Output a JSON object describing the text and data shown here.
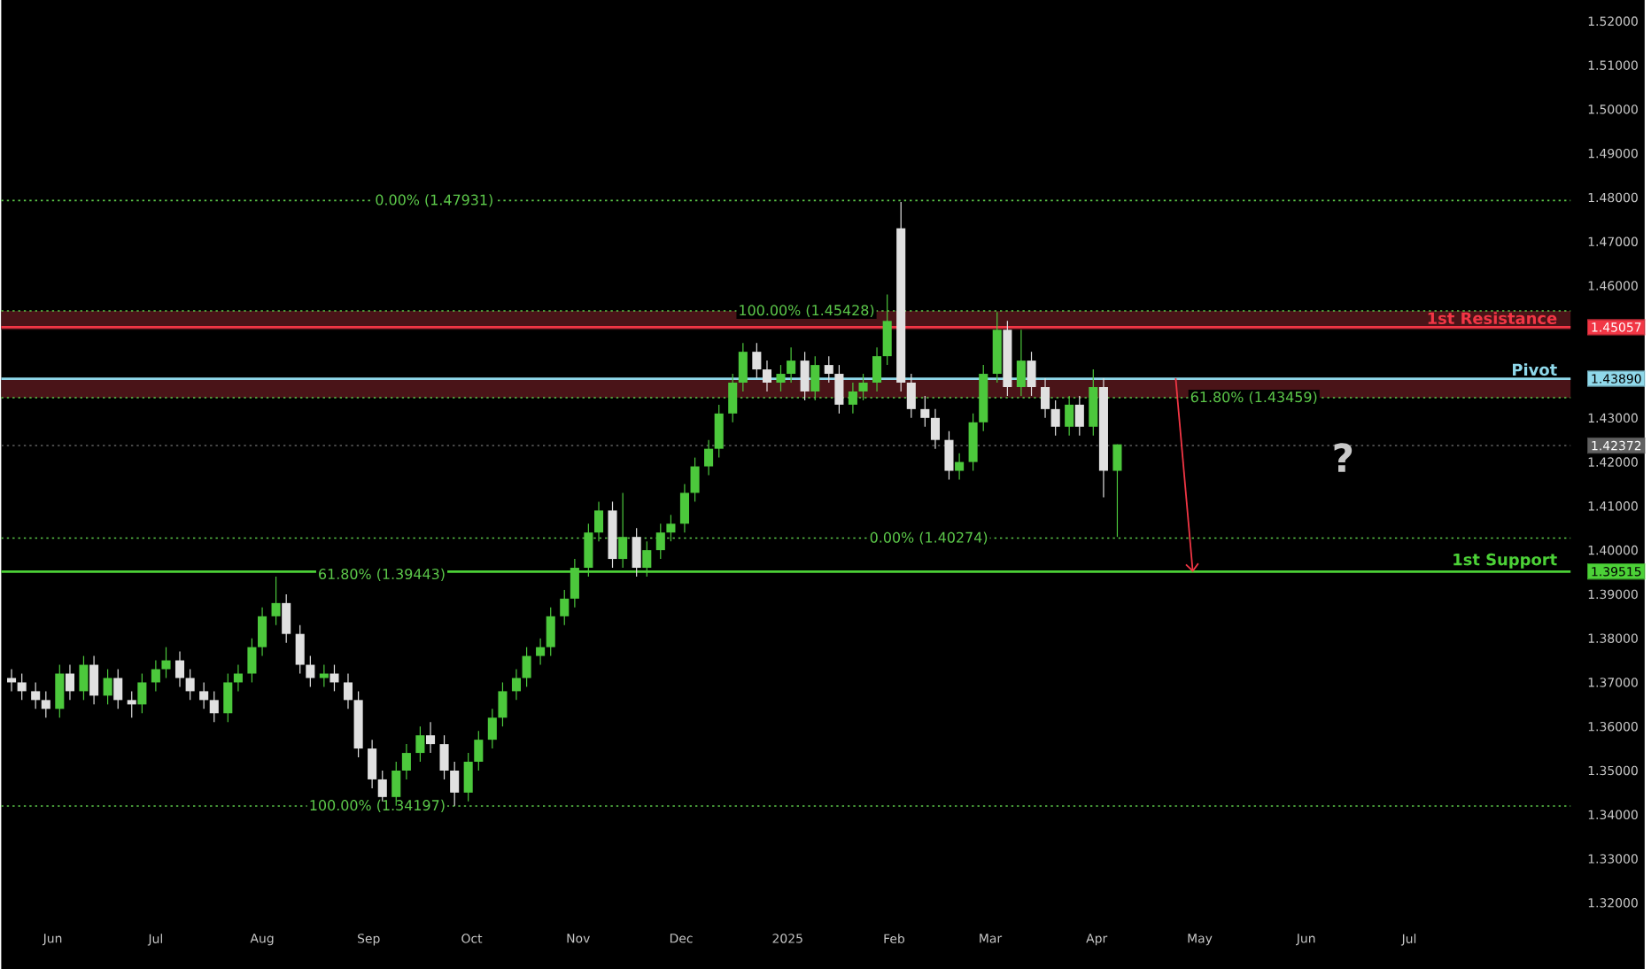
{
  "chart_data": {
    "type": "candlestick",
    "x": [
      "2024-05-20",
      "2024-05-23",
      "2024-05-27",
      "2024-05-30",
      "2024-06-03",
      "2024-06-06",
      "2024-06-10",
      "2024-06-13",
      "2024-06-17",
      "2024-06-20",
      "2024-06-24",
      "2024-06-27",
      "2024-07-01",
      "2024-07-04",
      "2024-07-08",
      "2024-07-11",
      "2024-07-15",
      "2024-07-18",
      "2024-07-22",
      "2024-07-25",
      "2024-07-29",
      "2024-08-01",
      "2024-08-05",
      "2024-08-08",
      "2024-08-12",
      "2024-08-15",
      "2024-08-19",
      "2024-08-22",
      "2024-08-26",
      "2024-08-29",
      "2024-09-02",
      "2024-09-05",
      "2024-09-09",
      "2024-09-12",
      "2024-09-16",
      "2024-09-19",
      "2024-09-23",
      "2024-09-26",
      "2024-09-30",
      "2024-10-03",
      "2024-10-07",
      "2024-10-10",
      "2024-10-14",
      "2024-10-17",
      "2024-10-21",
      "2024-10-24",
      "2024-10-28",
      "2024-10-31",
      "2024-11-04",
      "2024-11-07",
      "2024-11-11",
      "2024-11-14",
      "2024-11-18",
      "2024-11-21",
      "2024-11-25",
      "2024-11-28",
      "2024-12-02",
      "2024-12-05",
      "2024-12-09",
      "2024-12-12",
      "2024-12-16",
      "2024-12-19",
      "2024-12-23",
      "2024-12-26",
      "2024-12-30",
      "2025-01-02",
      "2025-01-06",
      "2025-01-09",
      "2025-01-13",
      "2025-01-16",
      "2025-01-20",
      "2025-01-23",
      "2025-01-27",
      "2025-01-30",
      "2025-02-03",
      "2025-02-06",
      "2025-02-10",
      "2025-02-13",
      "2025-02-17",
      "2025-02-20",
      "2025-02-24",
      "2025-02-27",
      "2025-03-03",
      "2025-03-06",
      "2025-03-10",
      "2025-03-13",
      "2025-03-17",
      "2025-03-20",
      "2025-03-24",
      "2025-03-27",
      "2025-03-31",
      "2025-04-03",
      "2025-04-07"
    ],
    "ohlc": [
      [
        1.371,
        1.373,
        1.368,
        1.37
      ],
      [
        1.37,
        1.372,
        1.366,
        1.368
      ],
      [
        1.368,
        1.37,
        1.364,
        1.366
      ],
      [
        1.366,
        1.368,
        1.362,
        1.364
      ],
      [
        1.364,
        1.374,
        1.362,
        1.372
      ],
      [
        1.372,
        1.374,
        1.366,
        1.368
      ],
      [
        1.368,
        1.376,
        1.366,
        1.374
      ],
      [
        1.374,
        1.376,
        1.365,
        1.367
      ],
      [
        1.367,
        1.373,
        1.365,
        1.371
      ],
      [
        1.371,
        1.373,
        1.364,
        1.366
      ],
      [
        1.366,
        1.368,
        1.362,
        1.365
      ],
      [
        1.365,
        1.372,
        1.363,
        1.37
      ],
      [
        1.37,
        1.375,
        1.368,
        1.373
      ],
      [
        1.373,
        1.378,
        1.371,
        1.375
      ],
      [
        1.375,
        1.377,
        1.369,
        1.371
      ],
      [
        1.371,
        1.373,
        1.366,
        1.368
      ],
      [
        1.368,
        1.37,
        1.364,
        1.366
      ],
      [
        1.366,
        1.368,
        1.361,
        1.363
      ],
      [
        1.363,
        1.372,
        1.361,
        1.37
      ],
      [
        1.37,
        1.374,
        1.368,
        1.372
      ],
      [
        1.372,
        1.38,
        1.37,
        1.378
      ],
      [
        1.378,
        1.387,
        1.376,
        1.385
      ],
      [
        1.385,
        1.394,
        1.383,
        1.388
      ],
      [
        1.388,
        1.39,
        1.379,
        1.381
      ],
      [
        1.381,
        1.383,
        1.372,
        1.374
      ],
      [
        1.374,
        1.376,
        1.369,
        1.371
      ],
      [
        1.371,
        1.374,
        1.369,
        1.372
      ],
      [
        1.372,
        1.374,
        1.368,
        1.37
      ],
      [
        1.37,
        1.372,
        1.364,
        1.366
      ],
      [
        1.366,
        1.368,
        1.353,
        1.355
      ],
      [
        1.355,
        1.357,
        1.346,
        1.348
      ],
      [
        1.348,
        1.35,
        1.343,
        1.344
      ],
      [
        1.344,
        1.352,
        1.342,
        1.35
      ],
      [
        1.35,
        1.356,
        1.348,
        1.354
      ],
      [
        1.354,
        1.36,
        1.352,
        1.358
      ],
      [
        1.358,
        1.361,
        1.354,
        1.356
      ],
      [
        1.356,
        1.358,
        1.348,
        1.35
      ],
      [
        1.35,
        1.352,
        1.342,
        1.345
      ],
      [
        1.345,
        1.354,
        1.343,
        1.352
      ],
      [
        1.352,
        1.359,
        1.35,
        1.357
      ],
      [
        1.357,
        1.364,
        1.355,
        1.362
      ],
      [
        1.362,
        1.37,
        1.36,
        1.368
      ],
      [
        1.368,
        1.373,
        1.366,
        1.371
      ],
      [
        1.371,
        1.378,
        1.369,
        1.376
      ],
      [
        1.376,
        1.38,
        1.374,
        1.378
      ],
      [
        1.378,
        1.387,
        1.376,
        1.385
      ],
      [
        1.385,
        1.391,
        1.383,
        1.389
      ],
      [
        1.389,
        1.398,
        1.387,
        1.396
      ],
      [
        1.396,
        1.406,
        1.394,
        1.404
      ],
      [
        1.404,
        1.411,
        1.402,
        1.409
      ],
      [
        1.409,
        1.411,
        1.396,
        1.398
      ],
      [
        1.398,
        1.413,
        1.396,
        1.403
      ],
      [
        1.403,
        1.405,
        1.394,
        1.396
      ],
      [
        1.396,
        1.402,
        1.394,
        1.4
      ],
      [
        1.4,
        1.406,
        1.398,
        1.404
      ],
      [
        1.404,
        1.408,
        1.402,
        1.406
      ],
      [
        1.406,
        1.415,
        1.404,
        1.413
      ],
      [
        1.413,
        1.421,
        1.411,
        1.419
      ],
      [
        1.419,
        1.425,
        1.417,
        1.423
      ],
      [
        1.423,
        1.433,
        1.421,
        1.431
      ],
      [
        1.431,
        1.44,
        1.429,
        1.438
      ],
      [
        1.438,
        1.447,
        1.436,
        1.445
      ],
      [
        1.445,
        1.447,
        1.439,
        1.441
      ],
      [
        1.441,
        1.443,
        1.436,
        1.438
      ],
      [
        1.438,
        1.442,
        1.436,
        1.44
      ],
      [
        1.44,
        1.446,
        1.438,
        1.443
      ],
      [
        1.443,
        1.445,
        1.434,
        1.436
      ],
      [
        1.436,
        1.444,
        1.434,
        1.442
      ],
      [
        1.442,
        1.444,
        1.438,
        1.44
      ],
      [
        1.44,
        1.442,
        1.431,
        1.433
      ],
      [
        1.433,
        1.438,
        1.431,
        1.436
      ],
      [
        1.436,
        1.44,
        1.434,
        1.438
      ],
      [
        1.438,
        1.446,
        1.436,
        1.444
      ],
      [
        1.444,
        1.458,
        1.442,
        1.452
      ],
      [
        1.473,
        1.479,
        1.436,
        1.438
      ],
      [
        1.438,
        1.44,
        1.43,
        1.432
      ],
      [
        1.432,
        1.435,
        1.428,
        1.43
      ],
      [
        1.43,
        1.432,
        1.423,
        1.425
      ],
      [
        1.425,
        1.427,
        1.416,
        1.418
      ],
      [
        1.418,
        1.422,
        1.416,
        1.42
      ],
      [
        1.42,
        1.431,
        1.418,
        1.429
      ],
      [
        1.429,
        1.442,
        1.427,
        1.44
      ],
      [
        1.44,
        1.454,
        1.438,
        1.45
      ],
      [
        1.45,
        1.452,
        1.435,
        1.437
      ],
      [
        1.437,
        1.45,
        1.435,
        1.443
      ],
      [
        1.443,
        1.445,
        1.435,
        1.437
      ],
      [
        1.437,
        1.439,
        1.43,
        1.432
      ],
      [
        1.432,
        1.434,
        1.426,
        1.428
      ],
      [
        1.428,
        1.435,
        1.426,
        1.433
      ],
      [
        1.433,
        1.435,
        1.426,
        1.428
      ],
      [
        1.428,
        1.441,
        1.426,
        1.437
      ],
      [
        1.437,
        1.439,
        1.412,
        1.418
      ],
      [
        1.418,
        1.424,
        1.403,
        1.424
      ]
    ],
    "colors": [
      "#e0e0e0",
      "#e0e0e0",
      "#e0e0e0",
      "#e0e0e0",
      "#4cc83c",
      "#e0e0e0",
      "#4cc83c",
      "#e0e0e0",
      "#4cc83c",
      "#e0e0e0",
      "#e0e0e0",
      "#4cc83c",
      "#4cc83c",
      "#4cc83c",
      "#e0e0e0",
      "#e0e0e0",
      "#e0e0e0",
      "#e0e0e0",
      "#4cc83c",
      "#4cc83c",
      "#4cc83c",
      "#4cc83c",
      "#4cc83c",
      "#e0e0e0",
      "#e0e0e0",
      "#e0e0e0",
      "#4cc83c",
      "#e0e0e0",
      "#e0e0e0",
      "#e0e0e0",
      "#e0e0e0",
      "#e0e0e0",
      "#4cc83c",
      "#4cc83c",
      "#4cc83c",
      "#e0e0e0",
      "#e0e0e0",
      "#e0e0e0",
      "#4cc83c",
      "#4cc83c",
      "#4cc83c",
      "#4cc83c",
      "#4cc83c",
      "#4cc83c",
      "#4cc83c",
      "#4cc83c",
      "#4cc83c",
      "#4cc83c",
      "#4cc83c",
      "#4cc83c",
      "#e0e0e0",
      "#4cc83c",
      "#e0e0e0",
      "#4cc83c",
      "#4cc83c",
      "#4cc83c",
      "#4cc83c",
      "#4cc83c",
      "#4cc83c",
      "#4cc83c",
      "#4cc83c",
      "#4cc83c",
      "#e0e0e0",
      "#e0e0e0",
      "#4cc83c",
      "#4cc83c",
      "#e0e0e0",
      "#4cc83c",
      "#e0e0e0",
      "#e0e0e0",
      "#4cc83c",
      "#4cc83c",
      "#4cc83c",
      "#4cc83c",
      "#e0e0e0",
      "#e0e0e0",
      "#e0e0e0",
      "#e0e0e0",
      "#e0e0e0",
      "#4cc83c",
      "#4cc83c",
      "#4cc83c",
      "#4cc83c",
      "#e0e0e0",
      "#4cc83c",
      "#e0e0e0",
      "#e0e0e0",
      "#e0e0e0",
      "#4cc83c",
      "#e0e0e0",
      "#4cc83c",
      "#e0e0e0",
      "#4cc83c"
    ],
    "xlim": [
      "2024-05-17",
      "2025-08-17"
    ],
    "xticks": [
      {
        "value": "2024-06-01",
        "label": "Jun"
      },
      {
        "value": "2024-07-01",
        "label": "Jul"
      },
      {
        "value": "2024-08-01",
        "label": "Aug"
      },
      {
        "value": "2024-09-01",
        "label": "Sep"
      },
      {
        "value": "2024-10-01",
        "label": "Oct"
      },
      {
        "value": "2024-11-01",
        "label": "Nov"
      },
      {
        "value": "2024-12-01",
        "label": "Dec"
      },
      {
        "value": "2025-01-01",
        "label": "2025"
      },
      {
        "value": "2025-02-01",
        "label": "Feb"
      },
      {
        "value": "2025-03-01",
        "label": "Mar"
      },
      {
        "value": "2025-04-01",
        "label": "Apr"
      },
      {
        "value": "2025-05-01",
        "label": "May"
      },
      {
        "value": "2025-06-01",
        "label": "Jun"
      },
      {
        "value": "2025-07-01",
        "label": "Jul"
      }
    ],
    "ylim": [
      1.32,
      1.52
    ],
    "yticks": [
      {
        "value": 1.32,
        "label": "1.32000"
      },
      {
        "value": 1.33,
        "label": "1.33000"
      },
      {
        "value": 1.34,
        "label": "1.34000"
      },
      {
        "value": 1.35,
        "label": "1.35000"
      },
      {
        "value": 1.36,
        "label": "1.36000"
      },
      {
        "value": 1.37,
        "label": "1.37000"
      },
      {
        "value": 1.38,
        "label": "1.38000"
      },
      {
        "value": 1.39,
        "label": "1.39000"
      },
      {
        "value": 1.39515,
        "label": "1.39515"
      },
      {
        "value": 1.4,
        "label": "1.40000"
      },
      {
        "value": 1.41,
        "label": "1.41000"
      },
      {
        "value": 1.42,
        "label": "1.42000"
      },
      {
        "value": 1.42372,
        "label": "1.42372"
      },
      {
        "value": 1.43,
        "label": "1.43000"
      },
      {
        "value": 1.4389,
        "label": "1.43890"
      },
      {
        "value": 1.45057,
        "label": "1.45057"
      },
      {
        "value": 1.46,
        "label": "1.46000"
      },
      {
        "value": 1.47,
        "label": "1.47000"
      },
      {
        "value": 1.48,
        "label": "1.48000"
      },
      {
        "value": 1.49,
        "label": "1.49000"
      },
      {
        "value": 1.5,
        "label": "1.50000"
      },
      {
        "value": 1.51,
        "label": "1.51000"
      },
      {
        "value": 1.52,
        "label": "1.52000"
      }
    ],
    "bands": [
      {
        "axis": "y",
        "from": 1.45,
        "to": 1.4543,
        "label": null,
        "color": "#4a1418"
      },
      {
        "axis": "y",
        "from": 1.4346,
        "to": 1.4389,
        "label": null,
        "color": "#4a1418"
      }
    ],
    "ref_lines": [
      {
        "axis": "y",
        "value": 1.47931,
        "label": null,
        "color": "#5cc84a",
        "line_style": "dotted"
      },
      {
        "axis": "y",
        "value": 1.45428,
        "label": null,
        "color": "#5cc84a",
        "line_style": "dotted"
      },
      {
        "axis": "y",
        "value": 1.43459,
        "label": null,
        "color": "#5cc84a",
        "line_style": "dotted"
      },
      {
        "axis": "y",
        "value": 1.40274,
        "label": null,
        "color": "#5cc84a",
        "line_style": "dotted"
      },
      {
        "axis": "y",
        "value": 1.34197,
        "label": null,
        "color": "#5cc84a",
        "line_style": "dotted"
      },
      {
        "axis": "y",
        "value": 1.42372,
        "label": null,
        "color": "#606060",
        "line_style": "dotted"
      },
      {
        "axis": "y",
        "value": 1.45057,
        "label": "1st Resistance",
        "color": "#f23645",
        "line_style": "solid"
      },
      {
        "axis": "y",
        "value": 1.4389,
        "label": "Pivot",
        "color": "#8fd8ea",
        "line_style": "solid"
      },
      {
        "axis": "y",
        "value": 1.39515,
        "label": "1st Support",
        "color": "#4cd137",
        "line_style": "solid"
      }
    ],
    "annotations": [
      {
        "text": "0.00% (1.47931)",
        "x": "2024-10-08",
        "y": 1.47931
      },
      {
        "text": "100.00% (1.45428)",
        "x": "2025-01-27",
        "y": 1.45428
      },
      {
        "text": "61.80% (1.43459)",
        "x": "2025-06-05",
        "y": 1.43459
      },
      {
        "text": "0.00% (1.40274)",
        "x": "2025-03-01",
        "y": 1.40274
      },
      {
        "text": "61.80% (1.39443)",
        "x": "2024-09-24",
        "y": 1.39443
      },
      {
        "text": "100.00% (1.34197)",
        "x": "2024-09-24",
        "y": 1.34197
      },
      "?"
    ],
    "series": [
      {
        "type": "line",
        "color": "#f23645",
        "x": [
          "2025-04-24",
          "2025-04-29"
        ],
        "values": [
          1.439,
          1.395
        ]
      }
    ],
    "grid": false
  }
}
